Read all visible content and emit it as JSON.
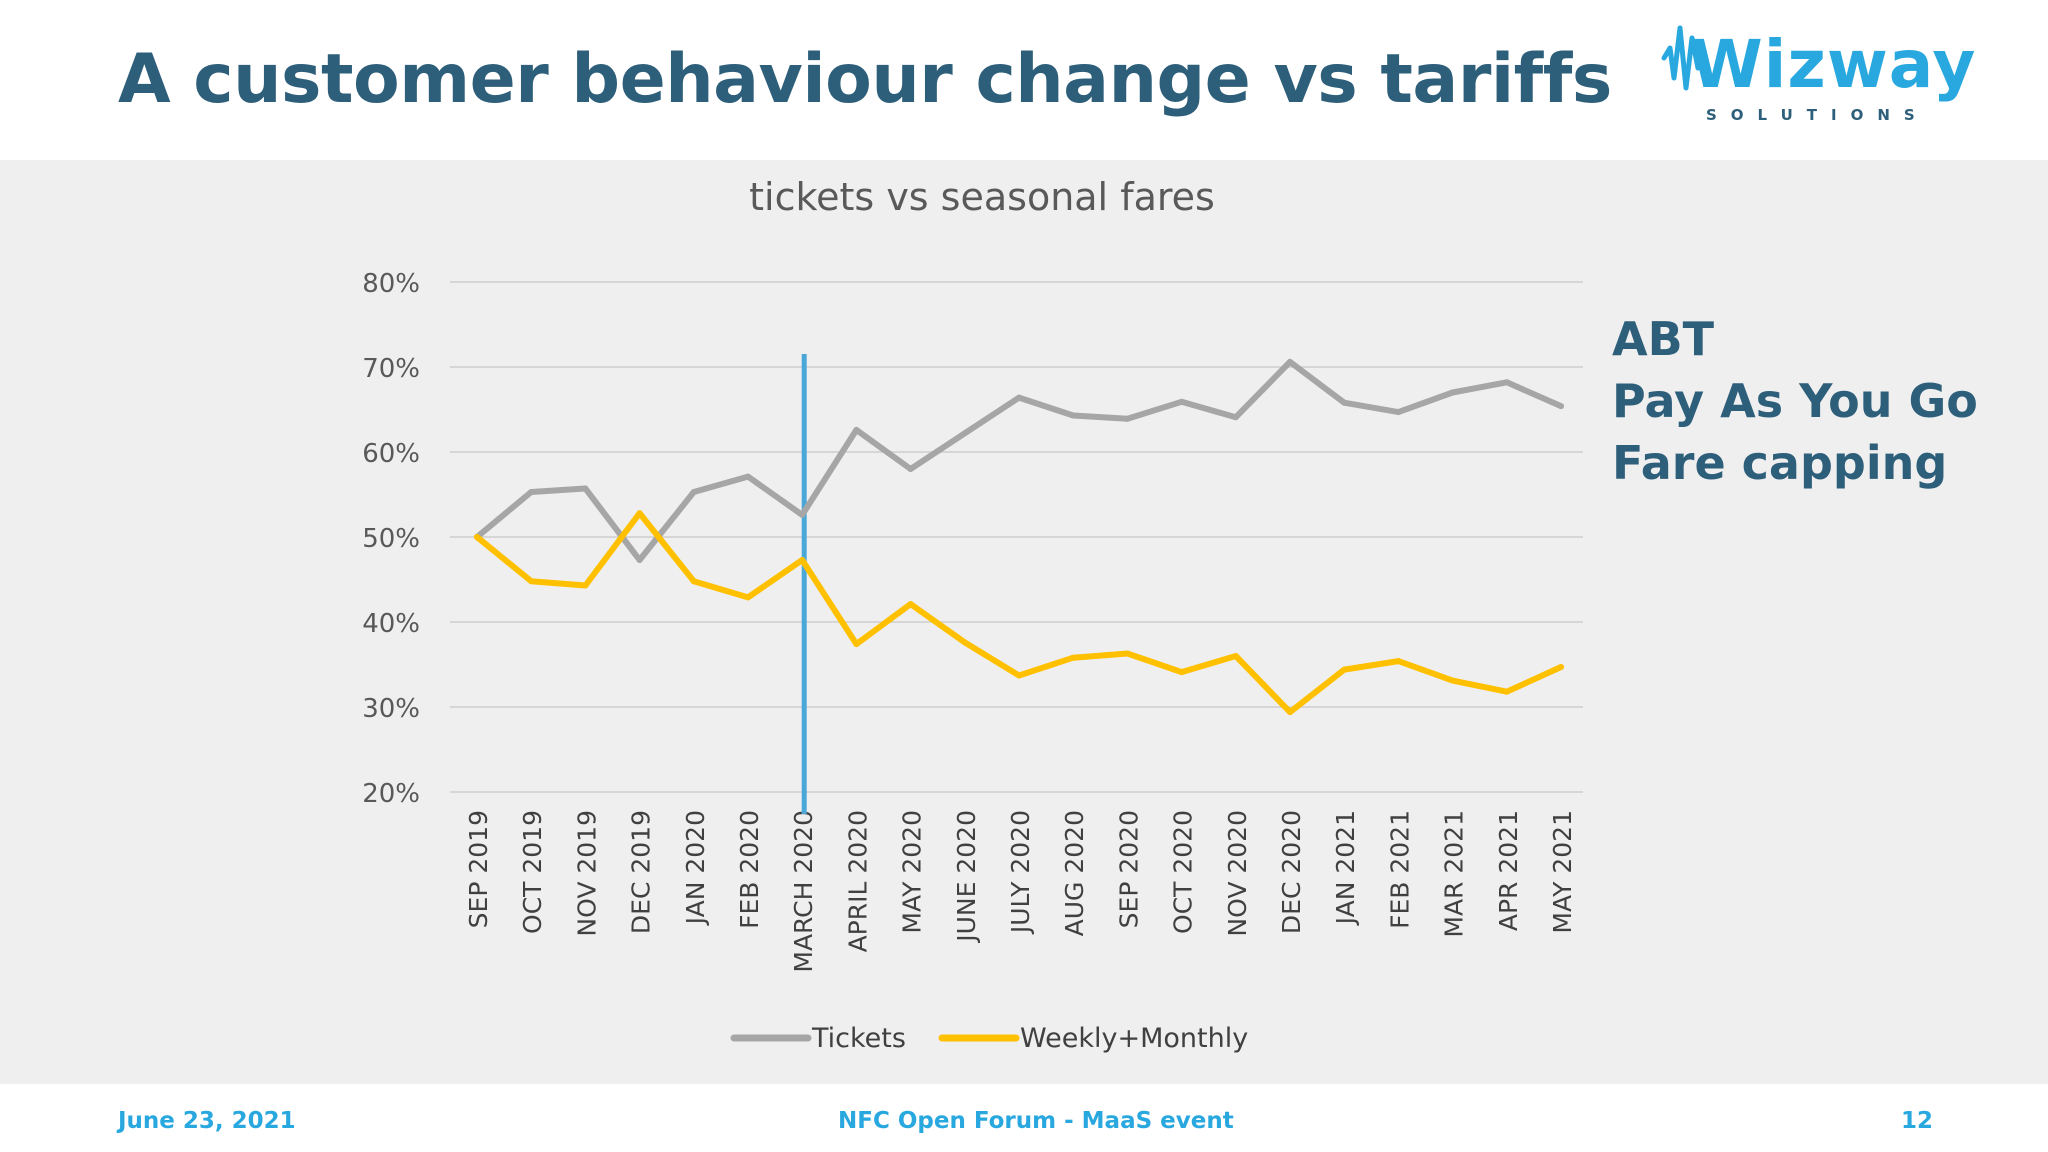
{
  "slide": {
    "title": "A customer behaviour change vs tariffs",
    "logo": {
      "name": "Wizway",
      "tagline": "SOLUTIONS",
      "icon": "wizway-wave-logo"
    },
    "side_labels": [
      "ABT",
      "Pay As You Go",
      "Fare capping"
    ],
    "footer": {
      "date": "June 23, 2021",
      "event": "NFC Open Forum - MaaS event",
      "page": "12"
    }
  },
  "colors": {
    "title": "#2e5f7a",
    "accent": "#29a8df",
    "tickets": "#a6a6a6",
    "weekly_monthly": "#ffc000",
    "marker": "#4aa8d8",
    "panel": "#efeff0",
    "grid": "#d6d6d6"
  },
  "chart_data": {
    "type": "line",
    "title": "tickets vs seasonal fares",
    "categories": [
      "SEP 2019",
      "OCT 2019",
      "NOV 2019",
      "DEC 2019",
      "JAN 2020",
      "FEB 2020",
      "MARCH 2020",
      "APRIL 2020",
      "MAY 2020",
      "JUNE 2020",
      "JULY 2020",
      "AUG 2020",
      "SEP 2020",
      "OCT 2020",
      "NOV 2020",
      "DEC 2020",
      "JAN 2021",
      "FEB 2021",
      "MAR 2021",
      "APR 2021",
      "MAY 2021"
    ],
    "series": [
      {
        "name": "Tickets",
        "color": "#a6a6a6",
        "values": [
          50,
          55.3,
          55.7,
          47.3,
          55.3,
          57.1,
          52.6,
          62.6,
          58,
          62.2,
          66.4,
          64.3,
          63.9,
          65.9,
          64.1,
          70.6,
          65.8,
          64.7,
          67,
          68.2,
          65.4
        ]
      },
      {
        "name": "Weekly+Monthly",
        "color": "#ffc000",
        "values": [
          50,
          44.8,
          44.3,
          52.8,
          44.8,
          42.9,
          47.3,
          37.4,
          42.1,
          37.6,
          33.7,
          35.8,
          36.3,
          34.1,
          36,
          29.4,
          34.4,
          35.4,
          33.1,
          31.8,
          34.7
        ]
      }
    ],
    "ylim": [
      20,
      80
    ],
    "yticks": [
      "20%",
      "30%",
      "40%",
      "50%",
      "60%",
      "70%",
      "80%"
    ],
    "grid": true,
    "legend_position": "bottom",
    "vertical_marker_at": "MARCH 2020"
  }
}
